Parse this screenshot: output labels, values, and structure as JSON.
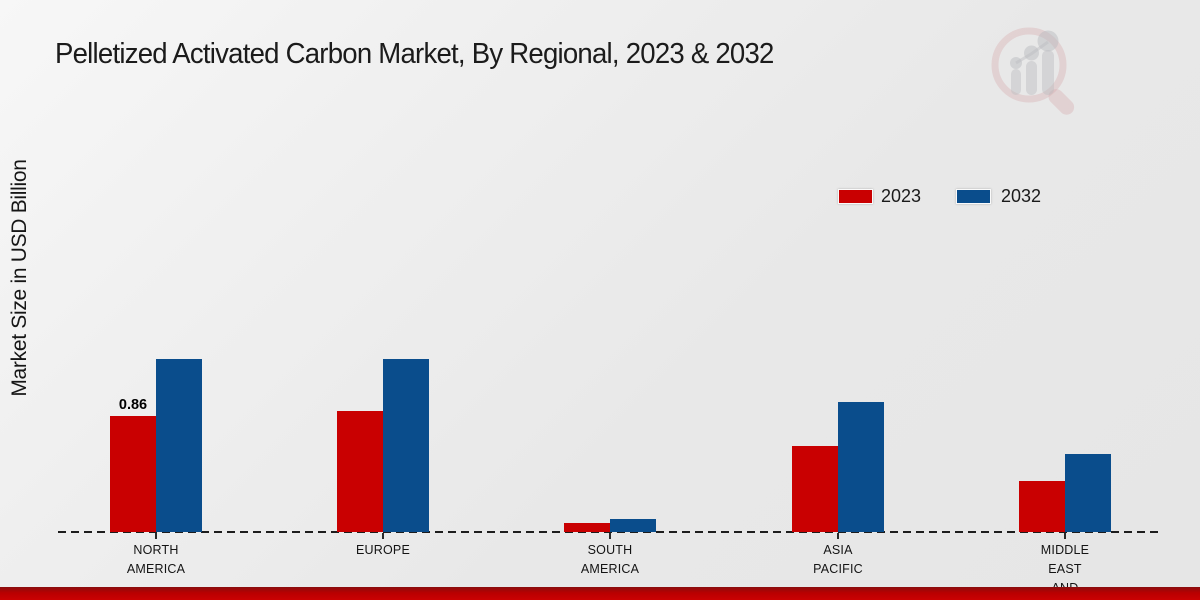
{
  "title": "Pelletized Activated Carbon Market, By Regional, 2023 & 2032",
  "y_axis_label": "Market Size in USD Billion",
  "legend": [
    {
      "label": "2023",
      "color": "#c90001"
    },
    {
      "label": "2032",
      "color": "#0a4d8c"
    }
  ],
  "colors": {
    "series_2023": "#c90001",
    "series_2032": "#0a4d8c",
    "background": "#eaeaea",
    "footer_band": "#c00001",
    "axis": "#1d1d1d",
    "text": "#1a1a1a"
  },
  "watermark_icon": "magnifier-bar-chart-logo",
  "chart_data": {
    "type": "bar",
    "title": "Pelletized Activated Carbon Market, By Regional, 2023 & 2032",
    "ylabel": "Market Size in USD Billion",
    "xlabel": "",
    "categories": [
      "NORTH AMERICA",
      "EUROPE",
      "SOUTH AMERICA",
      "ASIA PACIFIC",
      "MIDDLE EAST AND"
    ],
    "category_label_lines": [
      [
        "NORTH",
        "AMERICA"
      ],
      [
        "EUROPE"
      ],
      [
        "SOUTH",
        "AMERICA"
      ],
      [
        "ASIA",
        "PACIFIC"
      ],
      [
        "MIDDLE",
        "EAST",
        "AND"
      ]
    ],
    "series": [
      {
        "name": "2023",
        "color": "#c90001",
        "values": [
          0.86,
          0.9,
          0.07,
          0.64,
          0.38
        ]
      },
      {
        "name": "2032",
        "color": "#0a4d8c",
        "values": [
          1.28,
          1.28,
          0.1,
          0.96,
          0.58
        ]
      }
    ],
    "data_labels": [
      {
        "series_index": 0,
        "category_index": 0,
        "text": "0.86"
      }
    ],
    "ylim": [
      0,
      1.4
    ],
    "grid": false,
    "axis_style": "dashed-baseline-only",
    "legend_position": "upper-right"
  }
}
